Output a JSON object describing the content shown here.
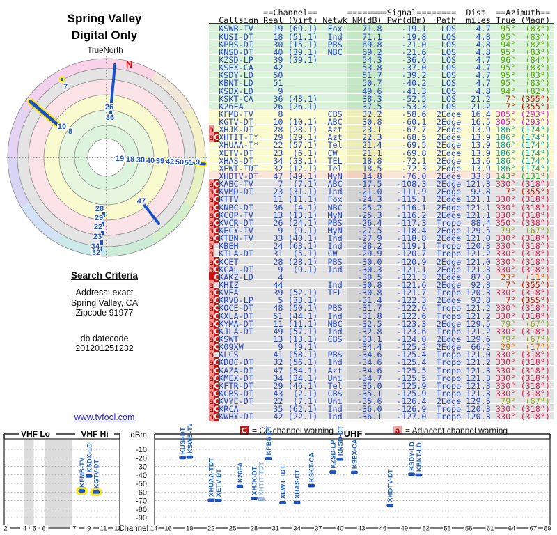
{
  "polar": {
    "title": "Spring Valley",
    "subtitle": "Digital Only",
    "north_ref_label": "TrueNorth",
    "north_label": "N"
  },
  "search": {
    "heading": "Search Criteria",
    "lines": [
      "Address: exact",
      "Spring Valley, CA",
      "Zipcode 91977"
    ],
    "datecode_label": "db datecode",
    "datecode": "201201251232",
    "link": "www.tvfool.com"
  },
  "legend": {
    "co_symbol": "C",
    "co_text": "= Co-channel warning",
    "adj_symbol": "a",
    "adj_text": "= Adjacent channel warning"
  },
  "table": {
    "header_channel": "Channel",
    "header_signal": "Signal",
    "header_dist": "Dist",
    "header_azimuth": "Azimuth",
    "header_cols": [
      "Callsign",
      "Real",
      "(Virt)",
      "Netwk",
      "NM(dB)",
      "Pwr(dBm)",
      "Path",
      "miles",
      "True",
      "(Magn)"
    ],
    "row_fields": [
      "warn",
      "callsign",
      "real",
      "virt",
      "netwk",
      "nm",
      "pwr",
      "path",
      "miles",
      "az_true",
      "az_magn",
      "band",
      "az_color"
    ],
    "rows": [
      [
        "",
        "KSWB-TV",
        "19",
        "(69.1)",
        "Fox",
        "71.8",
        "-19.1",
        "LOS",
        "4.7",
        "95°",
        "(83°)",
        "green",
        "#55a800"
      ],
      [
        "",
        "KUSI-DT",
        "18",
        "(51.1)",
        "Ind",
        "71.1",
        "-19.8",
        "LOS",
        "4.8",
        "95°",
        "(83°)",
        "green",
        "#55a800"
      ],
      [
        "",
        "KPBS-DT",
        "30",
        "(15.1)",
        "PBS",
        "69.8",
        "-21.0",
        "LOS",
        "4.8",
        "94°",
        "(82°)",
        "green",
        "#55a800"
      ],
      [
        "",
        "KNSD-DT",
        "40",
        "(39.1)",
        "NBC",
        "69.2",
        "-21.6",
        "LOS",
        "4.8",
        "95°",
        "(83°)",
        "green",
        "#55a800"
      ],
      [
        "",
        "KZSD-LP",
        "39",
        "(39.1)",
        "",
        "54.3",
        "-36.6",
        "LOS",
        "4.7",
        "96°",
        "(84°)",
        "green",
        "#55a800"
      ],
      [
        "",
        "KSEX-CA",
        "42",
        "",
        "",
        "53.8",
        "-37.0",
        "LOS",
        "4.7",
        "95°",
        "(83°)",
        "green",
        "#55a800"
      ],
      [
        "",
        "KSDY-LD",
        "50",
        "",
        "",
        "51.7",
        "-39.2",
        "LOS",
        "4.7",
        "95°",
        "(83°)",
        "green",
        "#55a800"
      ],
      [
        "",
        "KBNT-LD",
        "51",
        "",
        "",
        "50.7",
        "-40.2",
        "LOS",
        "4.7",
        "95°",
        "(83°)",
        "green",
        "#55a800"
      ],
      [
        "",
        "KSDX-LD",
        "9",
        "",
        "",
        "49.6",
        "-41.3",
        "LOS",
        "4.8",
        "94°",
        "(82°)",
        "green",
        "#55a800"
      ],
      [
        "",
        "KSKT-CA",
        "36",
        "(43.1)",
        "",
        "38.3",
        "-52.5",
        "LOS",
        "21.2",
        "7°",
        "(355°)",
        "green",
        "#cc1100"
      ],
      [
        "",
        "K26FA",
        "26",
        "(26.1)",
        "",
        "37.5",
        "-53.3",
        "LOS",
        "21.2",
        "7°",
        "(355°)",
        "green",
        "#cc1100"
      ],
      [
        "",
        "KFMB-TV",
        "8",
        "",
        "CBS",
        "32.2",
        "-58.6",
        "2Edge",
        "16.4",
        "305°",
        "(293°)",
        "yellow",
        "#dd22bb"
      ],
      [
        "",
        "KGTV-DT",
        "10",
        "(10.1)",
        "ABC",
        "30.8",
        "-60.1",
        "2Edge",
        "16.5",
        "305°",
        "(293°)",
        "yellow",
        "#dd22bb"
      ],
      [
        "a",
        "XHJK-DT",
        "28",
        "(28.1)",
        "Azt",
        "23.1",
        "-67.7",
        "2Edge",
        "13.9",
        "186°",
        "(174°)",
        "yellow",
        "#11a0a0"
      ],
      [
        "aC",
        "XHTIT-T*",
        "29",
        "(29.1)",
        "Azt",
        "22.3",
        "-68.5",
        "2Edge",
        "13.9",
        "186°",
        "(174°)",
        "yellow",
        "#11a0a0"
      ],
      [
        "",
        "XHUAA-T*",
        "22",
        "(57.1)",
        "Tel",
        "21.4",
        "-69.5",
        "2Edge",
        "13.9",
        "186°",
        "(174°)",
        "yellow",
        "#11a0a0"
      ],
      [
        "",
        "XETV-DT",
        "23",
        "(6.1)",
        "CW",
        "21.1",
        "-69.8",
        "2Edge",
        "13.9",
        "186°",
        "(174°)",
        "yellow",
        "#11a0a0"
      ],
      [
        "",
        "XHAS-DT",
        "34",
        "(33.1)",
        "TEL",
        "18.8",
        "-72.1",
        "2Edge",
        "13.6",
        "186°",
        "(174°)",
        "yellow",
        "#11a0a0"
      ],
      [
        "",
        "XEWT-TDT",
        "32",
        "(12.1)",
        "Tel",
        "18.5",
        "-72.3",
        "2Edge",
        "13.9",
        "186°",
        "(174°)",
        "yellow",
        "#11a0a0"
      ],
      [
        "",
        "XHDTV-DT",
        "47",
        "(49.1)",
        "MyN",
        "14.8",
        "-76.0",
        "2Edge",
        "33.8",
        "143°",
        "(131°)",
        "pink",
        "#22aa44"
      ],
      [
        "aC",
        "KABC-TV",
        "7",
        "(7.1)",
        "ABC",
        "-17.5",
        "-108.3",
        "2Edge",
        "121.3",
        "330°",
        "(318°)",
        "gray",
        "#dd2255"
      ],
      [
        "aC",
        "KVMD-DT",
        "23",
        "(31.1)",
        "Ind",
        "-21.0",
        "-111.9",
        "2Edge",
        "92.8",
        "7°",
        "(355°)",
        "gray",
        "#cc1100"
      ],
      [
        "aC",
        "KTTV",
        "11",
        "(11.1)",
        "Fox",
        "-24.3",
        "-115.1",
        "2Edge",
        "121.1",
        "330°",
        "(318°)",
        "gray",
        "#dd2255"
      ],
      [
        "aC",
        "KNBC-DT",
        "36",
        "(4.1)",
        "NBC",
        "-25.2",
        "-116.1",
        "2Edge",
        "121.1",
        "330°",
        "(318°)",
        "gray",
        "#dd2255"
      ],
      [
        "aC",
        "KCOP-TV",
        "13",
        "(13.1)",
        "MyN",
        "-25.3",
        "-116.2",
        "2Edge",
        "121.1",
        "330°",
        "(318°)",
        "gray",
        "#dd2255"
      ],
      [
        "aC",
        "KVCR-DT",
        "26",
        "(24.1)",
        "PBS",
        "-26.4",
        "-117.3",
        "Tropo",
        "88.4",
        "350°",
        "(338°)",
        "gray",
        "#dd2255"
      ],
      [
        "aC",
        "KECY-TV",
        "9",
        "(9.1)",
        "MyN",
        "-27.5",
        "-118.4",
        "2Edge",
        "129.5",
        "79°",
        "(67°)",
        "gray",
        "#8fa800"
      ],
      [
        "aC",
        "KTBN-TV",
        "33",
        "(40.1)",
        "Ind",
        "-27.9",
        "-118.8",
        "2Edge",
        "121.0",
        "330°",
        "(318°)",
        "gray",
        "#dd2255"
      ],
      [
        "a",
        "KBEH",
        "24",
        "(63.1)",
        "Ind",
        "-28.2",
        "-119.1",
        "Tropo",
        "120.3",
        "330°",
        "(318°)",
        "gray",
        "#dd2255"
      ],
      [
        "a",
        "KTLA-DT",
        "31",
        "(5.1)",
        "CW",
        "-29.9",
        "-120.7",
        "Tropo",
        "121.2",
        "330°",
        "(318°)",
        "gray",
        "#dd2255"
      ],
      [
        "aC",
        "KCET",
        "28",
        "(28.1)",
        "PBS",
        "-30.0",
        "-120.9",
        "2Edge",
        "121.0",
        "330°",
        "(318°)",
        "gray",
        "#dd2255"
      ],
      [
        "aC",
        "KCAL-DT",
        "9",
        "(9.1)",
        "Ind",
        "-30.3",
        "-121.1",
        "2Edge",
        "121.3",
        "330°",
        "(318°)",
        "gray",
        "#dd2255"
      ],
      [
        "CC",
        "KAKZ-LD",
        "4",
        "",
        "",
        "-30.5",
        "-121.3",
        "2Edge",
        "87.0",
        "23°",
        "(11°)",
        "gray",
        "#dd5500"
      ],
      [
        "a",
        "KHIZ",
        "44",
        "",
        "Ind",
        "-30.8",
        "-121.6",
        "2Edge",
        "92.8",
        "7°",
        "(355°)",
        "gray",
        "#cc1100"
      ],
      [
        "aC",
        "KVEA",
        "39",
        "(52.1)",
        "TEL",
        "-30.8",
        "-121.7",
        "Tropo",
        "120.3",
        "330°",
        "(318°)",
        "gray",
        "#dd2255"
      ],
      [
        "aC",
        "KRVD-LP",
        "5",
        "(33.1)",
        "",
        "-31.4",
        "-122.3",
        "2Edge",
        "92.8",
        "7°",
        "(355°)",
        "gray",
        "#cc1100"
      ],
      [
        "aC",
        "KOCE-DT",
        "48",
        "(50.1)",
        "PBS",
        "-31.7",
        "-122.6",
        "Tropo",
        "121.2",
        "330°",
        "(318°)",
        "gray",
        "#dd2255"
      ],
      [
        "aC",
        "KXLA-DT",
        "51",
        "(44.1)",
        "Ind",
        "-31.8",
        "-122.6",
        "Tropo",
        "121.2",
        "330°",
        "(318°)",
        "gray",
        "#dd2255"
      ],
      [
        "aC",
        "KYMA-DT",
        "11",
        "(11.1)",
        "NBC",
        "-32.5",
        "-123.3",
        "2Edge",
        "129.5",
        "79°",
        "(67°)",
        "gray",
        "#8fa800"
      ],
      [
        "aC",
        "KJLA-DT",
        "49",
        "(57.1)",
        "Ind",
        "-32.8",
        "-123.6",
        "Tropo",
        "121.2",
        "330°",
        "(318°)",
        "gray",
        "#dd2255"
      ],
      [
        "aC",
        "KSWT",
        "13",
        "(13.1)",
        "CBS",
        "-33.1",
        "-124.0",
        "2Edge",
        "129.6",
        "79°",
        "(67°)",
        "gray",
        "#8fa800"
      ],
      [
        "aC",
        "K09XW",
        "9",
        "(9.1)",
        "",
        "-34.4",
        "-125.2",
        "2Edge",
        "66.2",
        "29°",
        "(17°)",
        "gray",
        "#dd6600"
      ],
      [
        "a",
        "KLCS",
        "41",
        "(58.1)",
        "PBS",
        "-34.6",
        "-125.4",
        "Tropo",
        "121.0",
        "330°",
        "(318°)",
        "gray",
        "#dd2255"
      ],
      [
        "aC",
        "KDOC-DT",
        "32",
        "(56.1)",
        "Ind",
        "-34.6",
        "-125.4",
        "Tropo",
        "121.2",
        "330°",
        "(318°)",
        "gray",
        "#dd2255"
      ],
      [
        "aC",
        "KAZA-DT",
        "47",
        "(54.1)",
        "Azt",
        "-34.6",
        "-125.5",
        "Tropo",
        "121.3",
        "330°",
        "(318°)",
        "gray",
        "#dd2255"
      ],
      [
        "aC",
        "KMEX-DT",
        "34",
        "(34.1)",
        "Uni",
        "-34.7",
        "-125.5",
        "Tropo",
        "121.3",
        "330°",
        "(318°)",
        "gray",
        "#dd2255"
      ],
      [
        "aC",
        "KFTR-DT",
        "29",
        "(46.1)",
        "Tel",
        "-35.0",
        "-125.9",
        "Tropo",
        "121.3",
        "330°",
        "(318°)",
        "gray",
        "#dd2255"
      ],
      [
        "aC",
        "KCBS-DT",
        "43",
        "(2.1)",
        "CBS",
        "-35.1",
        "-125.9",
        "Tropo",
        "121.3",
        "330°",
        "(318°)",
        "gray",
        "#dd2255"
      ],
      [
        "aC",
        "KVYE-DT",
        "22",
        "(7.1)",
        "Uni",
        "-35.6",
        "-126.4",
        "2Edge",
        "129.5",
        "79°",
        "(67°)",
        "gray",
        "#8fa800"
      ],
      [
        "aC",
        "KRCA",
        "35",
        "(62.1)",
        "Ind",
        "-36.0",
        "-126.9",
        "Tropo",
        "120.3",
        "330°",
        "(318°)",
        "gray",
        "#dd2255"
      ],
      [
        "aC",
        "KWHY-DT",
        "42",
        "(22.1)",
        "Ind",
        "-36.1",
        "-127.0",
        "Tropo",
        "120.3",
        "330°",
        "(318°)",
        "gray",
        "#dd2255"
      ]
    ]
  },
  "chart_data": [
    {
      "type": "scatter",
      "name": "signal-power-by-channel",
      "xlabel": "Channel",
      "ylabel": "dBm",
      "ylim": [
        -95,
        -5
      ],
      "band_labels": {
        "vhf_lo": "VHF Lo",
        "vhf_hi": "VHF Hi",
        "uhf": "UHF"
      },
      "dbm_ticks": [
        -10,
        -20,
        -30,
        -40,
        -50,
        -60,
        -70,
        -80,
        -90
      ],
      "vhf_ticks": [
        2,
        4,
        5,
        6,
        7,
        9,
        11,
        13
      ],
      "uhf_ticks": [
        14,
        16,
        19,
        22,
        25,
        28,
        31,
        34,
        37,
        40,
        43,
        46,
        49,
        52,
        55,
        58,
        61,
        64,
        67,
        69
      ],
      "points": [
        {
          "callsign": "KFMB-TV",
          "channel": 8,
          "dbm": -58.6,
          "highlight": true
        },
        {
          "callsign": "KSDX-LD",
          "channel": 9,
          "dbm": -41.3
        },
        {
          "callsign": "KGTV-DT",
          "channel": 10,
          "dbm": -60.1,
          "highlight": true
        },
        {
          "callsign": "KUSI-DT",
          "channel": 18,
          "dbm": -19.8
        },
        {
          "callsign": "KSWB-TV",
          "channel": 19,
          "dbm": -19.1
        },
        {
          "callsign": "XHUAA-TDT",
          "channel": 22,
          "dbm": -69.5
        },
        {
          "callsign": "XETV-DT",
          "channel": 23,
          "dbm": -69.8
        },
        {
          "callsign": "K26FA",
          "channel": 26,
          "dbm": -53.3
        },
        {
          "callsign": "XHJK-DT",
          "channel": 28,
          "dbm": -67.7
        },
        {
          "callsign": "XHTIT-TDT",
          "channel": 29,
          "dbm": -68.5,
          "faded": true
        },
        {
          "callsign": "KPBS-DT",
          "channel": 30,
          "dbm": -21.0
        },
        {
          "callsign": "XEWT-TDT",
          "channel": 32,
          "dbm": -72.3
        },
        {
          "callsign": "XHAS-DT",
          "channel": 34,
          "dbm": -72.1
        },
        {
          "callsign": "KSKT-CA",
          "channel": 36,
          "dbm": -52.5
        },
        {
          "callsign": "KZSD-LP",
          "channel": 39,
          "dbm": -36.6
        },
        {
          "callsign": "KNSD-DT",
          "channel": 40,
          "dbm": -21.6
        },
        {
          "callsign": "KSEX-CA",
          "channel": 42,
          "dbm": -37.0
        },
        {
          "callsign": "XHDTV-DT",
          "channel": 47,
          "dbm": -76.0
        },
        {
          "callsign": "KSDY-LD",
          "channel": 50,
          "dbm": -39.2
        },
        {
          "callsign": "KBNT-LD",
          "channel": 51,
          "dbm": -40.2
        }
      ]
    },
    {
      "type": "polar-radar",
      "name": "station-azimuth-plot",
      "title": "Spring Valley",
      "subtitle": "Digital Only",
      "groups": [
        {
          "azimuth_true": 7,
          "channels": [
            "26",
            "36"
          ]
        },
        {
          "azimuth_true": 330,
          "channels": [
            "7"
          ]
        },
        {
          "azimuth_true": 305,
          "channels": [
            "10",
            "8"
          ],
          "highlight": true
        },
        {
          "azimuth_true": 95,
          "channels": [
            "19",
            "18",
            "30",
            "40",
            "39",
            "42",
            "50",
            "51",
            "9"
          ],
          "highlight": true
        },
        {
          "azimuth_true": 143,
          "channels": [
            "47"
          ]
        },
        {
          "azimuth_true": 186,
          "channels": [
            "28",
            "29",
            "22",
            "23",
            "34",
            "32"
          ]
        }
      ]
    }
  ]
}
